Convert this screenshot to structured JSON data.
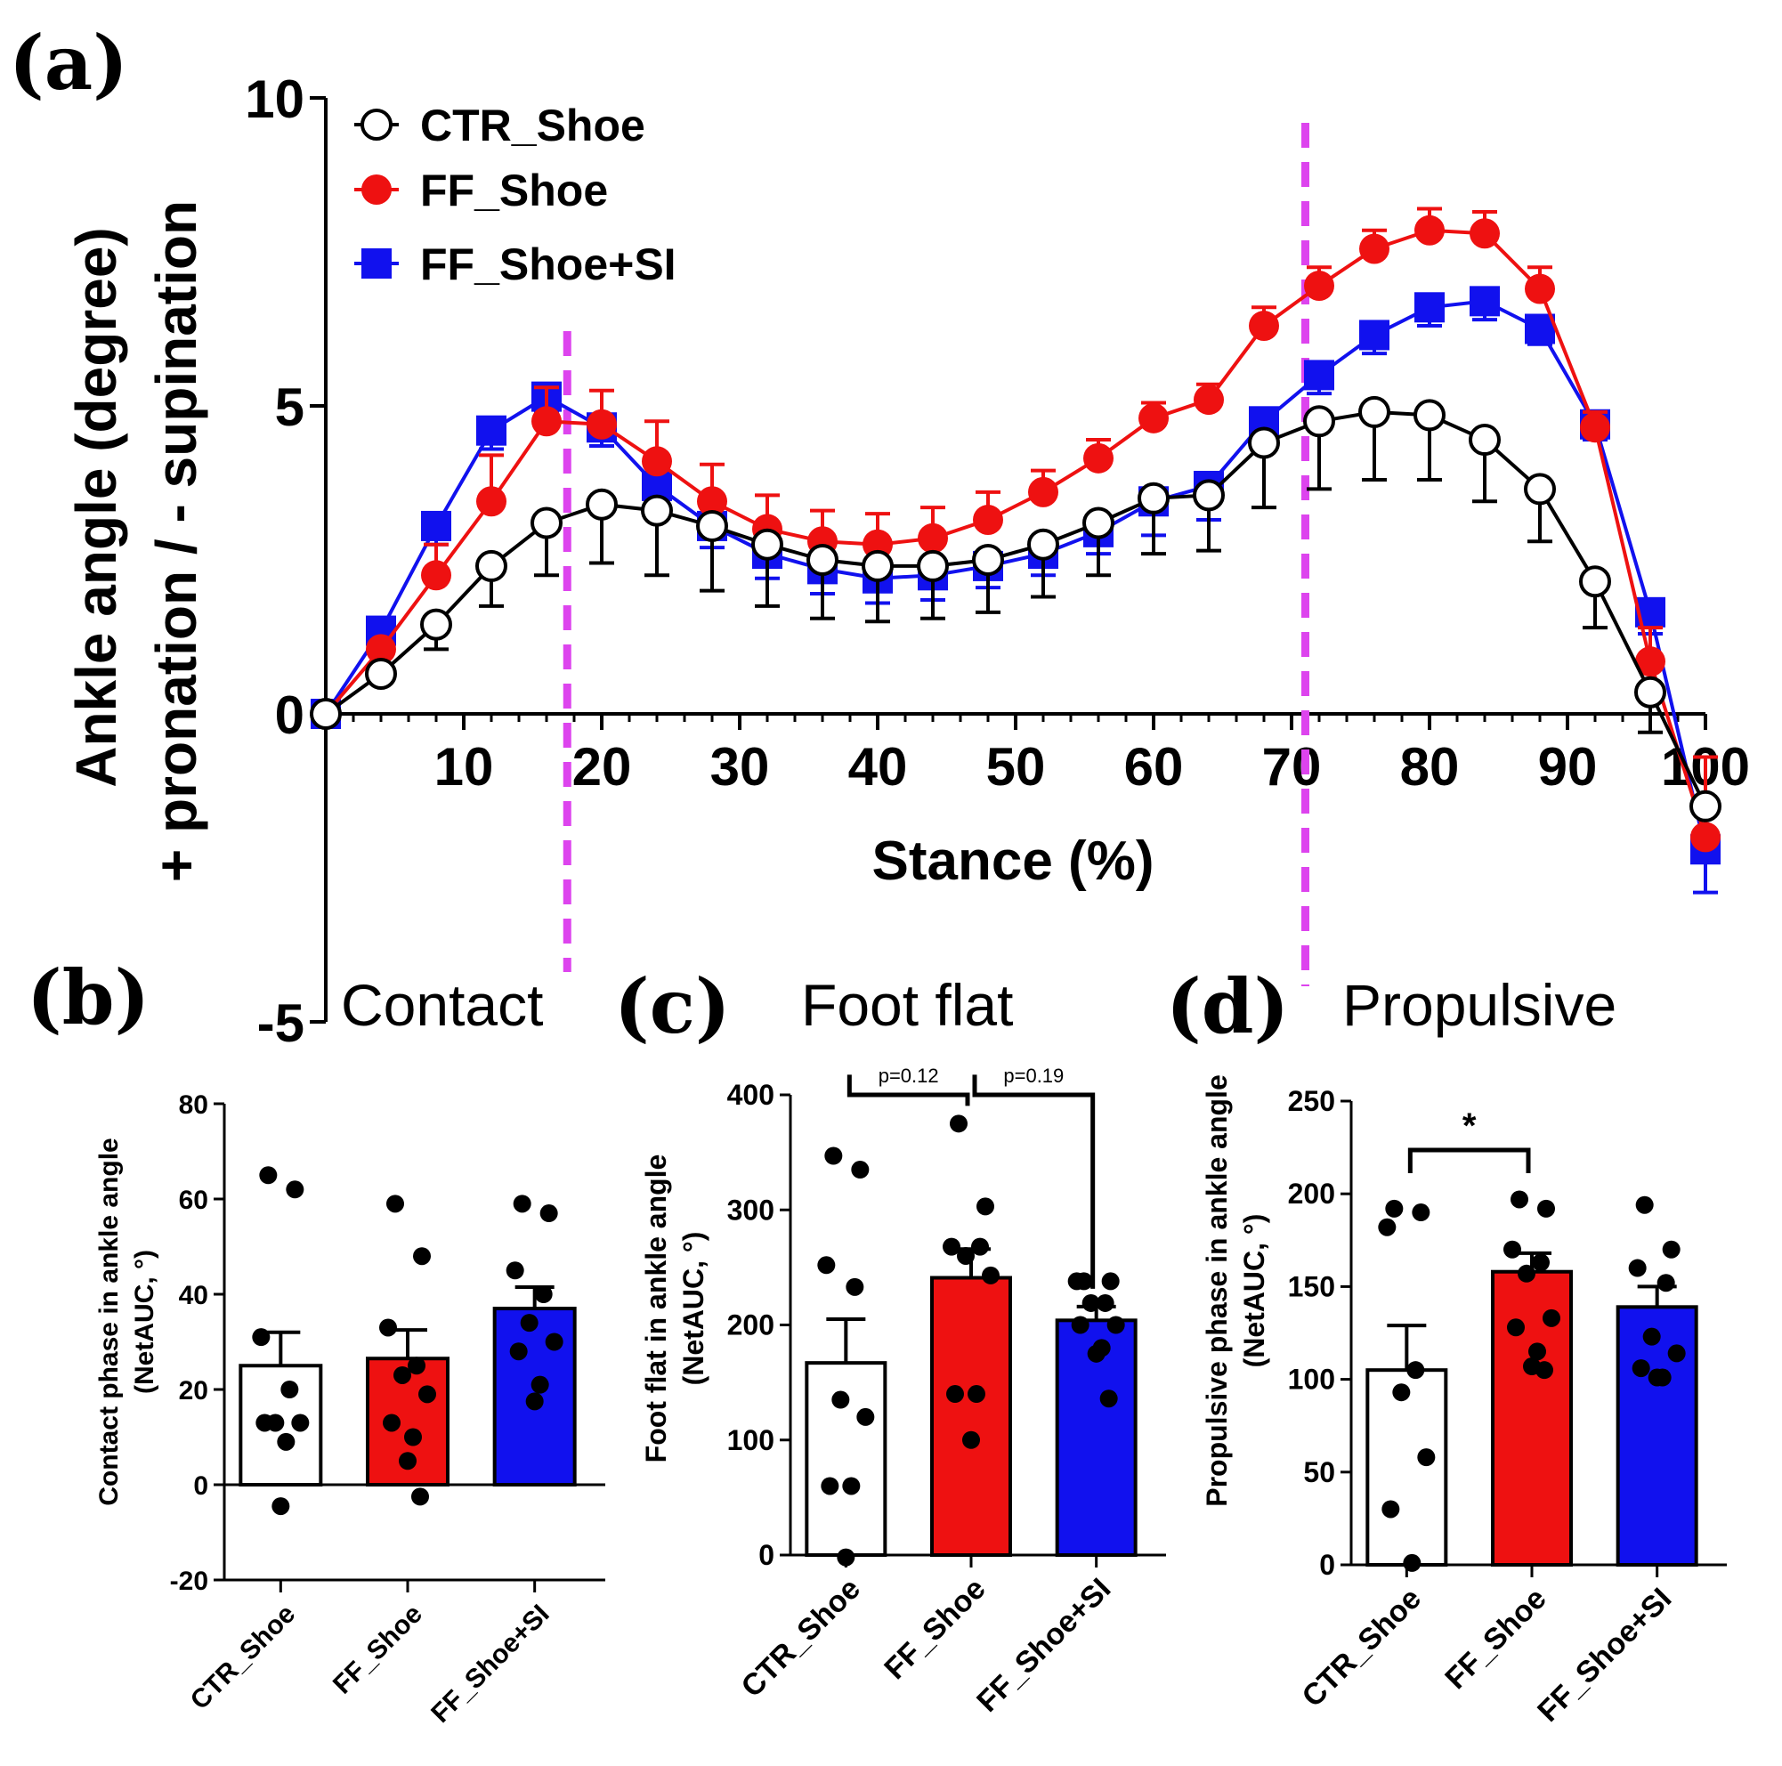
{
  "chart_data": [
    {
      "type": "line",
      "panel_label": "(a)",
      "xlabel": "Stance (%)",
      "ylabel_line1": "Ankle angle (degree)",
      "ylabel_line2": "+ pronation / - supination",
      "xlim": [
        0,
        100
      ],
      "ylim": [
        -5,
        10
      ],
      "xticks": [
        "10",
        "20",
        "30",
        "40",
        "50",
        "60",
        "70",
        "80",
        "90",
        "100"
      ],
      "yticks": [
        "10",
        "5",
        "0",
        "-5"
      ],
      "phase_lines_x": [
        17.5,
        71
      ],
      "phase_line_color": "#dd44ee",
      "x": [
        0,
        4,
        8,
        12,
        16,
        20,
        24,
        28,
        32,
        36,
        40,
        44,
        48,
        52,
        56,
        60,
        64,
        68,
        72,
        76,
        80,
        84,
        88,
        92,
        96,
        100
      ],
      "series": [
        {
          "name": "CTR_Shoe",
          "color": "#000000",
          "marker": "open-circle",
          "values": [
            0,
            0.65,
            1.45,
            2.4,
            3.1,
            3.4,
            3.3,
            3.05,
            2.75,
            2.5,
            2.4,
            2.4,
            2.5,
            2.75,
            3.1,
            3.5,
            3.55,
            4.4,
            4.75,
            4.9,
            4.85,
            4.45,
            3.65,
            2.15,
            0.35,
            -1.5
          ],
          "errors": [
            0,
            0,
            0.4,
            0.65,
            0.85,
            0.95,
            1.05,
            1.05,
            1.0,
            0.95,
            0.9,
            0.85,
            0.85,
            0.85,
            0.85,
            0.9,
            0.9,
            1.05,
            1.1,
            1.1,
            1.05,
            1.0,
            0.85,
            0.75,
            0.65,
            0
          ],
          "error_dir": "down"
        },
        {
          "name": "FF_Shoe",
          "color": "#ee1111",
          "marker": "filled-circle",
          "values": [
            0,
            1.05,
            2.25,
            3.45,
            4.75,
            4.7,
            4.1,
            3.45,
            3.0,
            2.8,
            2.75,
            2.85,
            3.15,
            3.6,
            4.15,
            4.8,
            5.1,
            6.3,
            6.95,
            7.55,
            7.85,
            7.8,
            6.9,
            4.65,
            0.85,
            -2.0
          ],
          "errors": [
            0,
            0,
            0.5,
            0.75,
            0.55,
            0.55,
            0.65,
            0.6,
            0.55,
            0.5,
            0.5,
            0.5,
            0.45,
            0.35,
            0.3,
            0.25,
            0.25,
            0.3,
            0.3,
            0.3,
            0.35,
            0.35,
            0.35,
            0.25,
            0.55,
            1.3
          ],
          "error_dir": "up"
        },
        {
          "name": "FF_Shoe+SI",
          "color": "#1111ee",
          "marker": "filled-square",
          "values": [
            0,
            1.35,
            3.05,
            4.6,
            5.15,
            4.65,
            3.7,
            3.05,
            2.6,
            2.35,
            2.2,
            2.25,
            2.4,
            2.6,
            2.95,
            3.45,
            3.7,
            4.75,
            5.5,
            6.15,
            6.6,
            6.7,
            6.25,
            4.7,
            1.65,
            -2.2
          ],
          "errors": [
            0,
            0.2,
            0.3,
            0.3,
            0.25,
            0.3,
            0.35,
            0.35,
            0.4,
            0.4,
            0.4,
            0.4,
            0.35,
            0.35,
            0.35,
            0.55,
            0.55,
            0.3,
            0.3,
            0.3,
            0.3,
            0.3,
            0.25,
            0.25,
            0.35,
            0.7
          ],
          "error_dir": "down"
        }
      ]
    },
    {
      "type": "bar",
      "panel_label": "(b)",
      "title": "Contact",
      "ylabel_line1": "Contact phase in ankle angle",
      "ylabel_line2": "(NetAUC, °)",
      "ylim": [
        -20,
        80
      ],
      "yticks": [
        "80",
        "60",
        "40",
        "20",
        "0",
        "-20"
      ],
      "categories": [
        "CTR_Shoe",
        "FF_Shoe",
        "FF_Shoe+SI"
      ],
      "colors": [
        "#ffffff",
        "#ee1111",
        "#1111ee"
      ],
      "values": [
        25,
        26.5,
        37
      ],
      "sem": [
        7,
        6,
        4.5
      ],
      "points": [
        [
          65,
          62,
          31,
          20,
          13,
          13,
          13,
          9,
          -4.5
        ],
        [
          59,
          48,
          33,
          25,
          23,
          19,
          13,
          10,
          5,
          -2.5
        ],
        [
          59,
          57,
          45,
          40,
          34,
          30,
          28,
          21,
          17.5
        ]
      ],
      "annotations": []
    },
    {
      "type": "bar",
      "panel_label": "(c)",
      "title": "Foot flat",
      "ylabel_line1": "Foot flat in ankle angle",
      "ylabel_line2": "(NetAUC, °)",
      "ylim": [
        0,
        400
      ],
      "yticks": [
        "400",
        "300",
        "200",
        "100",
        "0"
      ],
      "categories": [
        "CTR_Shoe",
        "FF_Shoe",
        "FF_Shoe+SI"
      ],
      "colors": [
        "#ffffff",
        "#ee1111",
        "#1111ee"
      ],
      "values": [
        167,
        241,
        204
      ],
      "sem": [
        38,
        25,
        12
      ],
      "points": [
        [
          347,
          335,
          252,
          233,
          135,
          120,
          60,
          60,
          -2
        ],
        [
          375,
          303,
          268,
          268,
          260,
          243,
          140,
          140,
          100
        ],
        [
          238,
          238,
          238,
          219,
          219,
          200,
          200,
          180,
          175,
          136
        ]
      ],
      "annotations": [
        {
          "from": 0,
          "to": 1,
          "label": "p=0.12"
        },
        {
          "from": 1,
          "to": 2,
          "label": "p=0.19"
        }
      ]
    },
    {
      "type": "bar",
      "panel_label": "(d)",
      "title": "Propulsive",
      "ylabel_line1": "Propulsive phase in ankle angle",
      "ylabel_line2": "(NetAUC, °)",
      "ylim": [
        0,
        250
      ],
      "yticks": [
        "250",
        "200",
        "150",
        "100",
        "50",
        "0"
      ],
      "categories": [
        "CTR_Shoe",
        "FF_Shoe",
        "FF_Shoe+SI"
      ],
      "colors": [
        "#ffffff",
        "#ee1111",
        "#1111ee"
      ],
      "values": [
        105,
        158,
        139
      ],
      "sem": [
        24,
        10,
        11
      ],
      "points": [
        [
          192,
          190,
          182,
          105,
          93,
          58,
          30,
          1
        ],
        [
          197,
          192,
          170,
          163,
          157,
          133,
          128,
          115,
          107,
          105
        ],
        [
          194,
          170,
          160,
          152,
          123,
          114,
          106,
          101,
          101
        ]
      ],
      "annotations": [
        {
          "from": 0,
          "to": 1,
          "label": "*"
        }
      ]
    }
  ]
}
